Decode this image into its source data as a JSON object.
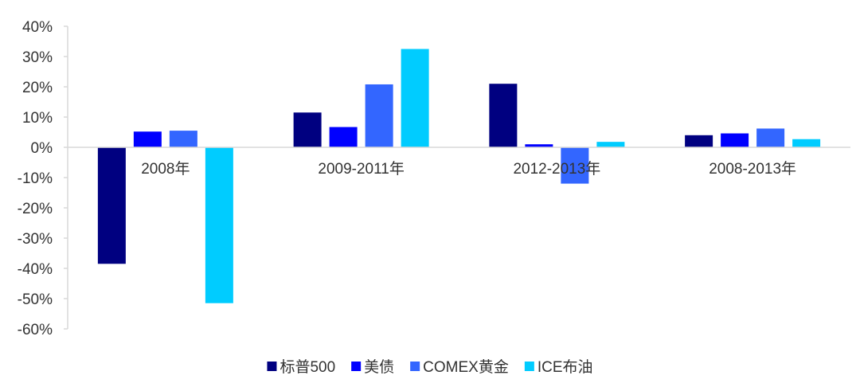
{
  "chart_data": {
    "type": "bar",
    "categories": [
      "2008年",
      "2009-2011年",
      "2012-2013年",
      "2008-2013年"
    ],
    "series": [
      {
        "name": "标普500",
        "color": "#000080",
        "values": [
          -38.5,
          11.5,
          21.0,
          4.0
        ]
      },
      {
        "name": "美债",
        "color": "#0000FF",
        "values": [
          5.2,
          6.7,
          1.0,
          4.6
        ]
      },
      {
        "name": "COMEX黄金",
        "color": "#3366FF",
        "values": [
          5.5,
          20.8,
          -12.0,
          6.2
        ]
      },
      {
        "name": "ICE布油",
        "color": "#00CCFF",
        "values": [
          -51.5,
          32.5,
          1.8,
          2.7
        ]
      }
    ],
    "ylim": [
      -60,
      40
    ],
    "yticks": [
      "40%",
      "30%",
      "20%",
      "10%",
      "0%",
      "-10%",
      "-20%",
      "-30%",
      "-40%",
      "-50%",
      "-60%"
    ],
    "title": "",
    "xlabel": "",
    "ylabel": "",
    "legend_position": "bottom",
    "grid": false
  }
}
